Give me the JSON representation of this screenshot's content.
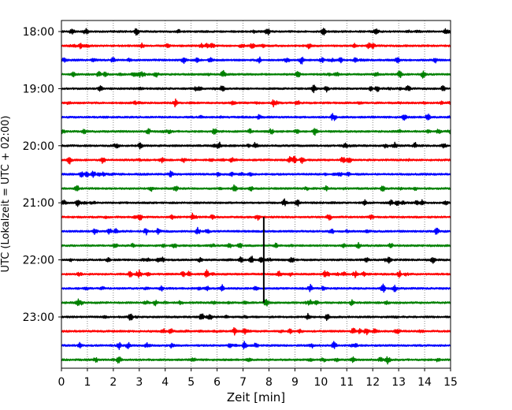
{
  "chart_data": {
    "type": "line",
    "title": "",
    "xlabel": "Zeit  [min]",
    "ylabel": "UTC (Lokalzeit = UTC + 02:00)",
    "xlim": [
      0,
      15
    ],
    "x_ticks": [
      "0",
      "1",
      "2",
      "3",
      "4",
      "5",
      "6",
      "7",
      "8",
      "9",
      "10",
      "11",
      "12",
      "13",
      "14",
      "15"
    ],
    "y_ticks": [
      "18:00",
      "19:00",
      "20:00",
      "21:00",
      "22:00",
      "23:00"
    ],
    "grid": "vertical dotted",
    "trace_start_times": [
      "18:00",
      "18:15",
      "18:30",
      "18:45",
      "19:00",
      "19:15",
      "19:30",
      "19:45",
      "20:00",
      "20:15",
      "20:30",
      "20:45",
      "21:00",
      "21:15",
      "21:30",
      "21:45",
      "22:00",
      "22:15",
      "22:30",
      "22:45",
      "23:00",
      "23:15",
      "23:30",
      "23:45"
    ],
    "trace_color_cycle": [
      "#000000",
      "#ff0000",
      "#0000ff",
      "#008000"
    ],
    "event": {
      "trace_range": [
        "21:15",
        "22:45"
      ],
      "minute": 7.8,
      "description": "large spike"
    }
  }
}
